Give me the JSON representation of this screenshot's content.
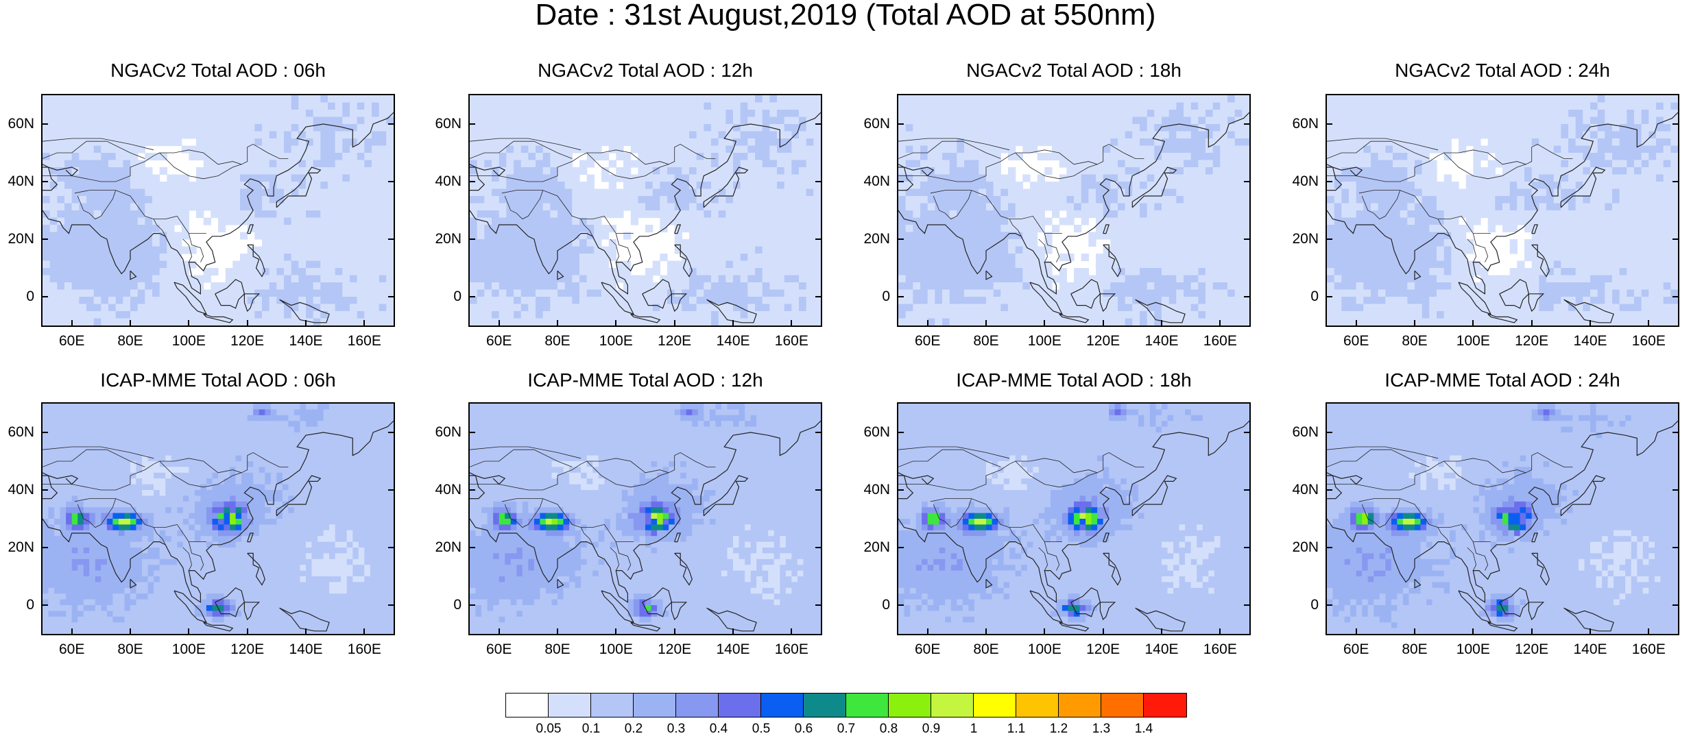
{
  "main_title": "Date : 31st August,2019 (Total AOD at 550nm)",
  "panels": [
    {
      "title": "NGACv2 Total AOD : 06h",
      "model": "NGACv2",
      "hour": "06h"
    },
    {
      "title": "NGACv2 Total AOD : 12h",
      "model": "NGACv2",
      "hour": "12h"
    },
    {
      "title": "NGACv2 Total AOD : 18h",
      "model": "NGACv2",
      "hour": "18h"
    },
    {
      "title": "NGACv2 Total AOD : 24h",
      "model": "NGACv2",
      "hour": "24h"
    },
    {
      "title": "ICAP-MME Total AOD : 06h",
      "model": "ICAP-MME",
      "hour": "06h"
    },
    {
      "title": "ICAP-MME Total AOD : 12h",
      "model": "ICAP-MME",
      "hour": "12h"
    },
    {
      "title": "ICAP-MME Total AOD : 18h",
      "model": "ICAP-MME",
      "hour": "18h"
    },
    {
      "title": "ICAP-MME Total AOD : 24h",
      "model": "ICAP-MME",
      "hour": "24h"
    }
  ],
  "axes": {
    "lat_ticks": [
      "60N",
      "40N",
      "20N",
      "0"
    ],
    "lat_values": [
      60,
      40,
      20,
      0
    ],
    "lon_ticks": [
      "60E",
      "80E",
      "100E",
      "120E",
      "140E",
      "160E"
    ],
    "lon_values": [
      60,
      80,
      100,
      120,
      140,
      160
    ],
    "lon_range": [
      50,
      170
    ],
    "lat_range": [
      -10,
      70
    ]
  },
  "colorbar": {
    "labels": [
      "0.05",
      "0.1",
      "0.2",
      "0.3",
      "0.4",
      "0.5",
      "0.6",
      "0.7",
      "0.8",
      "0.9",
      "1",
      "1.1",
      "1.2",
      "1.3",
      "1.4"
    ],
    "colors": [
      "#ffffff",
      "#d4e0fb",
      "#b4c6f6",
      "#9cb3f3",
      "#8798f0",
      "#6b6fec",
      "#0a5ff2",
      "#0f8a8a",
      "#3ee63e",
      "#8cf00f",
      "#c4f53f",
      "#ffff00",
      "#ffc400",
      "#ff9a00",
      "#ff6f00",
      "#ff1a0a"
    ]
  }
}
